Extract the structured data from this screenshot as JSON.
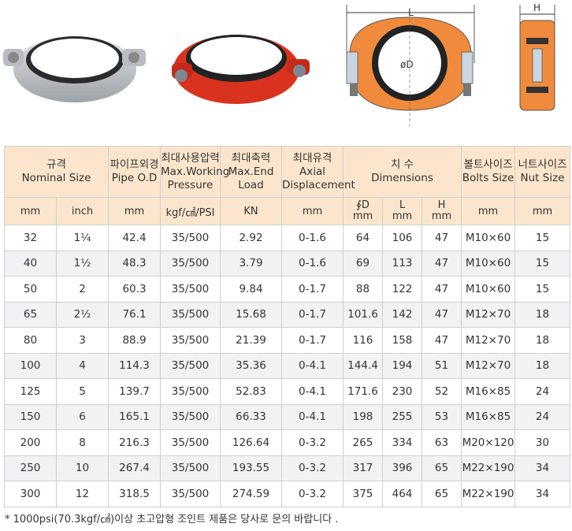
{
  "figures": {
    "dim_L": "L",
    "dim_H": "H",
    "dim_D": "øD"
  },
  "table": {
    "header1": [
      {
        "ko": "규격",
        "en": "Nominal Size"
      },
      {
        "ko": "파이프외경",
        "en": "Pipe O.D"
      },
      {
        "ko": "최대사용압력",
        "en": "Max.Working Pressure"
      },
      {
        "ko": "최대축력",
        "en": "Max.End Load"
      },
      {
        "ko": "최대유격",
        "en": "Axial Displacement"
      },
      {
        "ko": "치 수",
        "en": "Dimensions"
      },
      {
        "ko": "볼트사이즈",
        "en": "Bolts Size"
      },
      {
        "ko": "너트사이즈",
        "en": "Nut Size"
      }
    ],
    "units": {
      "mm1": "mm",
      "inch": "inch",
      "mm2": "mm",
      "pressure": "kgf/㎠/PSI",
      "kn": "KN",
      "mm3": "mm",
      "d": "∮D",
      "d_unit": "mm",
      "l": "L",
      "l_unit": "mm",
      "h": "H",
      "h_unit": "mm",
      "mm4": "mm",
      "mm5": "mm"
    },
    "rows": [
      [
        "32",
        "1¼",
        "42.4",
        "35/500",
        "2.92",
        "0-1.6",
        "64",
        "106",
        "47",
        "M10×60",
        "15"
      ],
      [
        "40",
        "1½",
        "48.3",
        "35/500",
        "3.79",
        "0-1.6",
        "69",
        "113",
        "47",
        "M10×60",
        "15"
      ],
      [
        "50",
        "2",
        "60.3",
        "35/500",
        "9.84",
        "0-1.7",
        "88",
        "122",
        "47",
        "M10×60",
        "15"
      ],
      [
        "65",
        "2½",
        "76.1",
        "35/500",
        "15.68",
        "0-1.7",
        "101.6",
        "142",
        "47",
        "M12×70",
        "18"
      ],
      [
        "80",
        "3",
        "88.9",
        "35/500",
        "21.39",
        "0-1.7",
        "116",
        "158",
        "47",
        "M12×70",
        "18"
      ],
      [
        "100",
        "4",
        "114.3",
        "35/500",
        "35.36",
        "0-4.1",
        "144.4",
        "194",
        "51",
        "M12×70",
        "18"
      ],
      [
        "125",
        "5",
        "139.7",
        "35/500",
        "52.83",
        "0-4.1",
        "171.6",
        "230",
        "52",
        "M16×85",
        "24"
      ],
      [
        "150",
        "6",
        "165.1",
        "35/500",
        "66.33",
        "0-4.1",
        "198",
        "255",
        "53",
        "M16×85",
        "24"
      ],
      [
        "200",
        "8",
        "216.3",
        "35/500",
        "126.64",
        "0-3.2",
        "265",
        "334",
        "63",
        "M20×120",
        "30"
      ],
      [
        "250",
        "10",
        "267.4",
        "35/500",
        "193.55",
        "0-3.2",
        "317",
        "396",
        "65",
        "M22×190",
        "34"
      ],
      [
        "300",
        "12",
        "318.5",
        "35/500",
        "274.59",
        "0-3.2",
        "375",
        "464",
        "65",
        "M22×190",
        "34"
      ]
    ]
  },
  "footnote": "* 1000psi(70.3kgf/㎠)이상 초고압형 조인트 제품은 당사로 문의 바랍니다 ."
}
